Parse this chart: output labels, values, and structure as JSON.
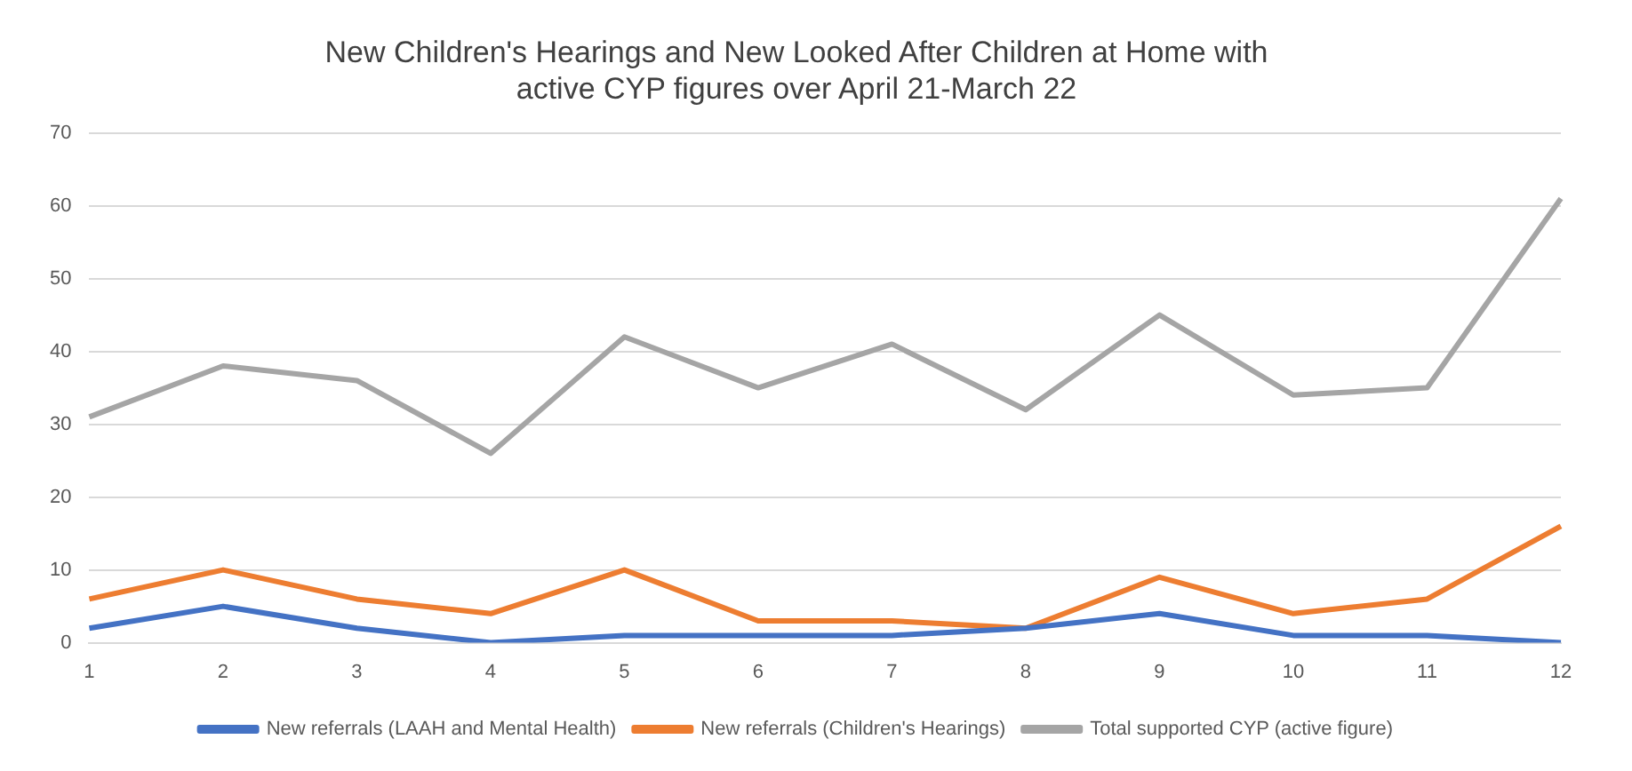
{
  "chart_data": {
    "type": "line",
    "title": "New Children's Hearings and New Looked After Children at Home with\nactive CYP figures over April 21-March 22",
    "categories": [
      "1",
      "2",
      "3",
      "4",
      "5",
      "6",
      "7",
      "8",
      "9",
      "10",
      "11",
      "12"
    ],
    "series": [
      {
        "name": "New referrals (LAAH and Mental Health)",
        "color": "#4472c4",
        "values": [
          2,
          5,
          2,
          0,
          1,
          1,
          1,
          2,
          4,
          1,
          1,
          0
        ]
      },
      {
        "name": "New referrals (Children's Hearings)",
        "color": "#ed7d31",
        "values": [
          6,
          10,
          6,
          4,
          10,
          3,
          3,
          2,
          9,
          4,
          6,
          16
        ]
      },
      {
        "name": "Total supported CYP (active figure)",
        "color": "#a5a5a5",
        "values": [
          31,
          38,
          36,
          26,
          42,
          35,
          41,
          32,
          45,
          34,
          35,
          61
        ]
      }
    ],
    "ylim": [
      0,
      70
    ],
    "yticks": [
      0,
      10,
      20,
      30,
      40,
      50,
      60,
      70
    ],
    "grid": "y",
    "legend": "bottom",
    "marker": "none",
    "line_style": "solid"
  }
}
